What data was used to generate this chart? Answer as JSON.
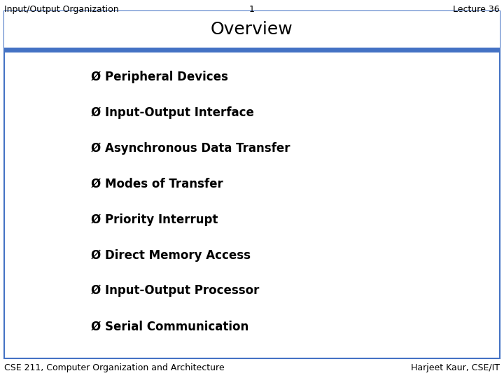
{
  "top_left": "Input/Output Organization",
  "top_center": "1",
  "top_right": "Lecture 36",
  "title": "Overview",
  "bullet_items": [
    "Peripheral Devices",
    "Input-Output Interface",
    "Asynchronous Data Transfer",
    "Modes of Transfer",
    "Priority Interrupt",
    "Direct Memory Access",
    "Input-Output Processor",
    "Serial Communication"
  ],
  "bottom_left": "CSE 211, Computer Organization and Architecture",
  "bottom_right": "Harjeet Kaur, CSE/IT",
  "bg_color": "#ffffff",
  "border_color": "#4472c4",
  "stripe_color": "#4472c4",
  "text_color": "#000000",
  "title_fontsize": 18,
  "header_fontsize": 9,
  "bullet_fontsize": 12,
  "footer_fontsize": 9,
  "bullet_char": "Ø "
}
